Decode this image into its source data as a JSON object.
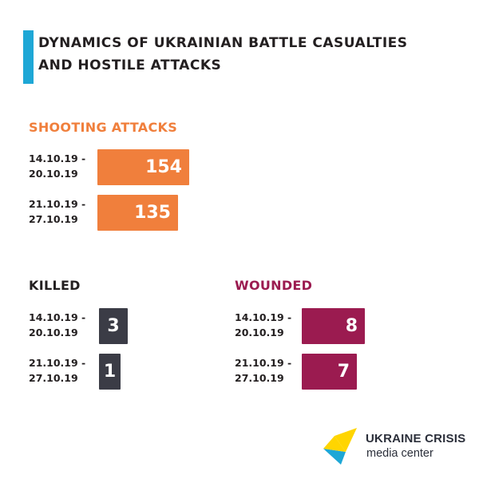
{
  "title": "DYNAMICS OF UKRAINIAN BATTLE CASUALTIES AND HOSTILE ATTACKS",
  "colors": {
    "accent_bar": "#1ea7d6",
    "shooting": "#f07f3c",
    "killed": "#3b3c46",
    "wounded": "#9b1b50"
  },
  "chart_data": [
    {
      "type": "bar",
      "title": "SHOOTING ATTACKS",
      "categories": [
        "14.10.19 -\n20.10.19",
        "21.10.19 -\n27.10.19"
      ],
      "values": [
        154,
        135
      ]
    },
    {
      "type": "bar",
      "title": "KILLED",
      "categories": [
        "14.10.19 -\n20.10.19",
        "21.10.19 -\n27.10.19"
      ],
      "values": [
        3,
        1
      ]
    },
    {
      "type": "bar",
      "title": "WOUNDED",
      "categories": [
        "14.10.19 -\n20.10.19",
        "21.10.19 -\n27.10.19"
      ],
      "values": [
        8,
        7
      ]
    }
  ],
  "logo": {
    "line1": "UKRAINE CRISIS",
    "line2": "media center",
    "icon": "ukraine-crisis-logo-icon"
  }
}
